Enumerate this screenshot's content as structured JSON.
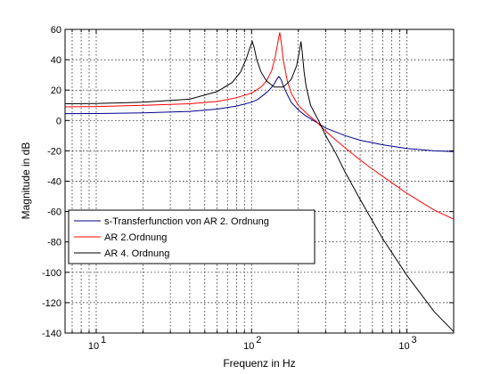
{
  "chart_data": {
    "type": "line",
    "xscale": "log",
    "xlim": [
      6.3,
      2000
    ],
    "ylim": [
      -140,
      60
    ],
    "xlabel": "Frequenz in Hz",
    "ylabel": "Magnitude in dB",
    "grid": true,
    "legend_position": "lower-left",
    "xtick_values": [
      10,
      100,
      1000
    ],
    "xtick_labels": [
      "10",
      "10",
      "10"
    ],
    "xtick_exponents": [
      "1",
      "2",
      "3"
    ],
    "yticks": [
      60,
      40,
      20,
      0,
      -20,
      -40,
      -60,
      -80,
      -100,
      -120,
      -140
    ],
    "ytick_labels": [
      "60",
      "40",
      "20",
      "0",
      "-20",
      "-40",
      "-60",
      "-80",
      "-100",
      "-120",
      "-140"
    ],
    "series": [
      {
        "name": "s-Transferfunction von AR 2. Ordnung",
        "color": "#00008b",
        "x": [
          6.3,
          10,
          20,
          40,
          60,
          80,
          100,
          110,
          120,
          130,
          140,
          145,
          150,
          155,
          160,
          170,
          180,
          200,
          220,
          250,
          280,
          300,
          400,
          500,
          700,
          1000,
          1500,
          2000
        ],
        "y": [
          4.5,
          4.6,
          5,
          6,
          7.5,
          9.5,
          12,
          14,
          17,
          20,
          24,
          27,
          29,
          27,
          23,
          17,
          12,
          7,
          3.5,
          0,
          -3,
          -5,
          -10,
          -13,
          -16,
          -18.5,
          -20,
          -20.5
        ]
      },
      {
        "name": "AR 2.Ordnung",
        "color": "#ff0000",
        "x": [
          6.3,
          10,
          20,
          40,
          60,
          80,
          100,
          115,
          125,
          135,
          142,
          148,
          152,
          156,
          160,
          170,
          180,
          200,
          230,
          260,
          300,
          350,
          400,
          500,
          600,
          800,
          1000,
          1500,
          2000
        ],
        "y": [
          9,
          9.2,
          10,
          11,
          12.5,
          15,
          18,
          22,
          26,
          33,
          42,
          52,
          58,
          50,
          40,
          26,
          18,
          10,
          4,
          -0.5,
          -7,
          -13,
          -18,
          -26,
          -32,
          -41,
          -48,
          -59,
          -65
        ]
      },
      {
        "name": "AR 4. Ordnung",
        "color": "#000000",
        "x": [
          6.3,
          10,
          20,
          40,
          60,
          75,
          85,
          92,
          97,
          101,
          104,
          108,
          115,
          125,
          140,
          160,
          180,
          195,
          203,
          208,
          212,
          218,
          225,
          240,
          270,
          300,
          350,
          400,
          500,
          700,
          1000,
          1500,
          2000
        ],
        "y": [
          11,
          11.2,
          12,
          14,
          19,
          25,
          32,
          40,
          47,
          52,
          48,
          40,
          32,
          26,
          22,
          22,
          27,
          36,
          45,
          52,
          45,
          32,
          22,
          10,
          0,
          -10,
          -22,
          -34,
          -52,
          -78,
          -102,
          -126,
          -139
        ]
      }
    ]
  }
}
